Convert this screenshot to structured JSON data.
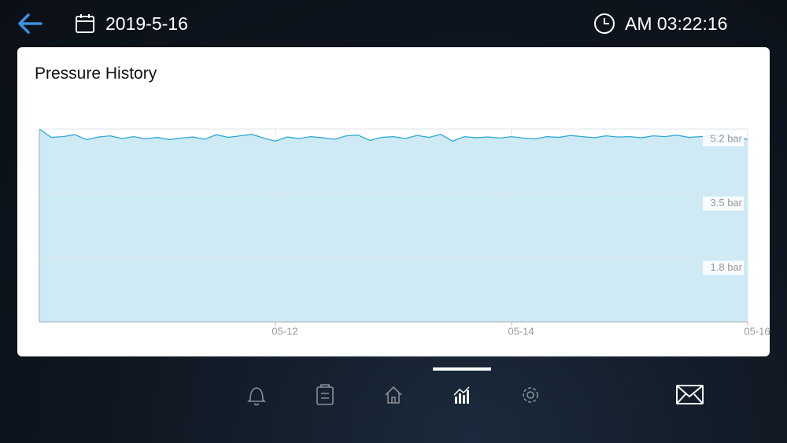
{
  "header": {
    "date": "2019-5-16",
    "time": "AM 03:22:16"
  },
  "chart_data": {
    "type": "area",
    "title": "Pressure History",
    "x": [
      0,
      1,
      2,
      3,
      4,
      5,
      6,
      7,
      8,
      9,
      10,
      11,
      12,
      13,
      14,
      15,
      16,
      17,
      18,
      19,
      20,
      21,
      22,
      23,
      24,
      25,
      26,
      27,
      28,
      29,
      30,
      31,
      32,
      33,
      34,
      35,
      36,
      37,
      38,
      39,
      40,
      41,
      42,
      43,
      44,
      45,
      46,
      47,
      48,
      49,
      50,
      51,
      52,
      53,
      54,
      55,
      56,
      57,
      58,
      59,
      60
    ],
    "series": [
      {
        "color": "#2fa8d8",
        "fill": "#cdeaf5",
        "values": [
          5.2,
          4.98,
          5.0,
          5.05,
          4.92,
          4.99,
          5.02,
          4.95,
          5.0,
          4.94,
          4.98,
          4.92,
          4.96,
          4.99,
          4.93,
          5.05,
          4.98,
          5.02,
          5.06,
          4.96,
          4.88,
          4.99,
          4.95,
          5.0,
          4.97,
          4.93,
          5.02,
          5.04,
          4.9,
          4.98,
          5.0,
          4.95,
          5.03,
          4.98,
          5.06,
          4.88,
          5.0,
          4.97,
          4.99,
          4.96,
          5.0,
          4.96,
          4.94,
          5.0,
          4.98,
          5.03,
          5.0,
          4.97,
          5.02,
          4.99,
          5.0,
          4.97,
          5.02,
          5.0,
          5.04,
          4.98,
          5.0,
          5.03,
          5.06,
          4.98,
          4.93
        ]
      }
    ],
    "xlim": [
      0,
      60
    ],
    "xticks": [
      {
        "value": 20,
        "label": "05-12"
      },
      {
        "value": 40,
        "label": "05-14"
      },
      {
        "value": 60,
        "label": "05-16"
      }
    ],
    "ylim": [
      0.1,
      5.2
    ],
    "yticks": [
      {
        "value": 1.8,
        "label": "1.8 bar"
      },
      {
        "value": 3.5,
        "label": "3.5 bar"
      },
      {
        "value": 5.2,
        "label": "5.2 bar"
      }
    ],
    "grid": true
  }
}
